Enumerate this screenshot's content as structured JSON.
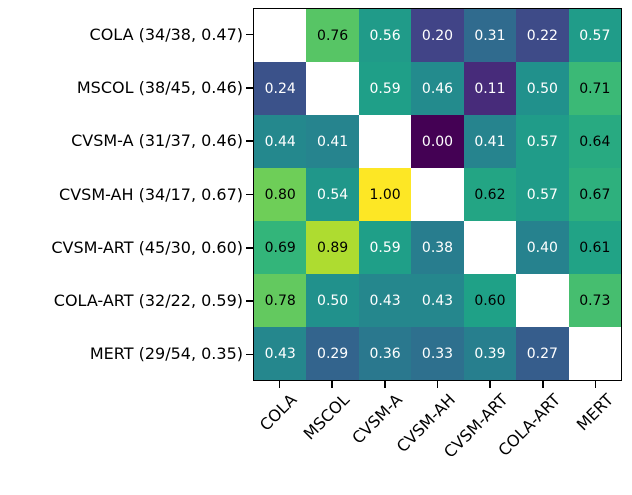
{
  "figure": {
    "background": "#ffffff",
    "spine_color": "#000000",
    "tick_color": "#000000"
  },
  "chart_data": {
    "type": "heatmap",
    "title": "",
    "xlabel": "",
    "ylabel": "",
    "row_labels": [
      "COLA (34/38, 0.47)",
      "MSCOL (38/45, 0.46)",
      "CVSM-A (31/37, 0.46)",
      "CVSM-AH (34/17, 0.67)",
      "CVSM-ART (45/30, 0.60)",
      "COLA-ART (32/22, 0.59)",
      "MERT (29/54, 0.35)"
    ],
    "col_labels": [
      "COLA",
      "MSCOL",
      "CVSM-A",
      "CVSM-AH",
      "CVSM-ART",
      "COLA-ART",
      "MERT"
    ],
    "matrix": [
      [
        null,
        0.76,
        0.56,
        0.2,
        0.31,
        0.22,
        0.57
      ],
      [
        0.24,
        null,
        0.59,
        0.46,
        0.11,
        0.5,
        0.71
      ],
      [
        0.44,
        0.41,
        null,
        0.0,
        0.41,
        0.57,
        0.64
      ],
      [
        0.8,
        0.54,
        1.0,
        null,
        0.62,
        0.57,
        0.67
      ],
      [
        0.69,
        0.89,
        0.59,
        0.38,
        null,
        0.4,
        0.61
      ],
      [
        0.78,
        0.5,
        0.43,
        0.43,
        0.6,
        null,
        0.73
      ],
      [
        0.43,
        0.29,
        0.36,
        0.33,
        0.39,
        0.27,
        null
      ]
    ],
    "value_decimals": 2,
    "colormap": "viridis",
    "colormap_stops": [
      [
        0.0,
        "#440154"
      ],
      [
        0.1,
        "#482878"
      ],
      [
        0.2,
        "#414487"
      ],
      [
        0.3,
        "#31688e"
      ],
      [
        0.4,
        "#26828e"
      ],
      [
        0.5,
        "#21918c"
      ],
      [
        0.6,
        "#1fa187"
      ],
      [
        0.7,
        "#35b779"
      ],
      [
        0.8,
        "#6ece58"
      ],
      [
        0.9,
        "#b5de2b"
      ],
      [
        1.0,
        "#fde725"
      ]
    ],
    "masked_cell_color": "#ffffff",
    "cell_text_light": "#ffffff",
    "cell_text_dark": "#000000",
    "dark_text_threshold": 0.6,
    "x_tick_rotation_deg": 45,
    "grid": false,
    "legend": "none"
  }
}
